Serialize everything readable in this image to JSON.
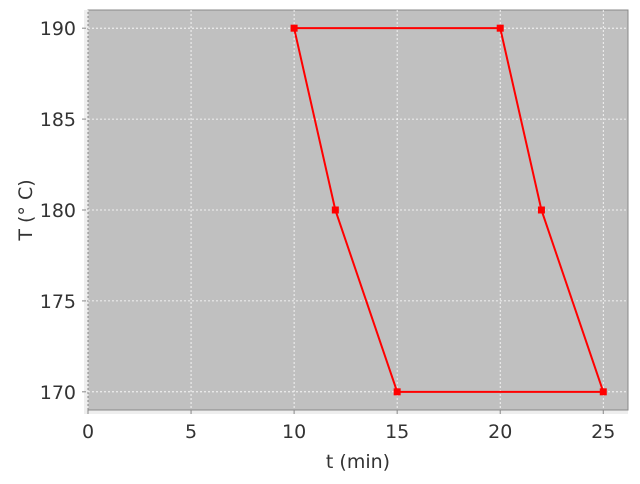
{
  "chart_data": {
    "type": "line",
    "title": "",
    "xlabel": "t (min)",
    "ylabel": "T (° C)",
    "xlim": [
      0,
      26.2
    ],
    "ylim": [
      169,
      191
    ],
    "xticks": [
      0,
      5,
      10,
      15,
      20,
      25
    ],
    "yticks": [
      170,
      175,
      180,
      185,
      190
    ],
    "grid": true,
    "background_color": "#c0c0c0",
    "series": [
      {
        "color": "#ff0000",
        "marker": "square",
        "closed": true,
        "x": [
          10,
          20,
          22,
          25,
          15,
          12,
          10
        ],
        "y": [
          190,
          190,
          180,
          170,
          170,
          180,
          190
        ]
      }
    ]
  }
}
